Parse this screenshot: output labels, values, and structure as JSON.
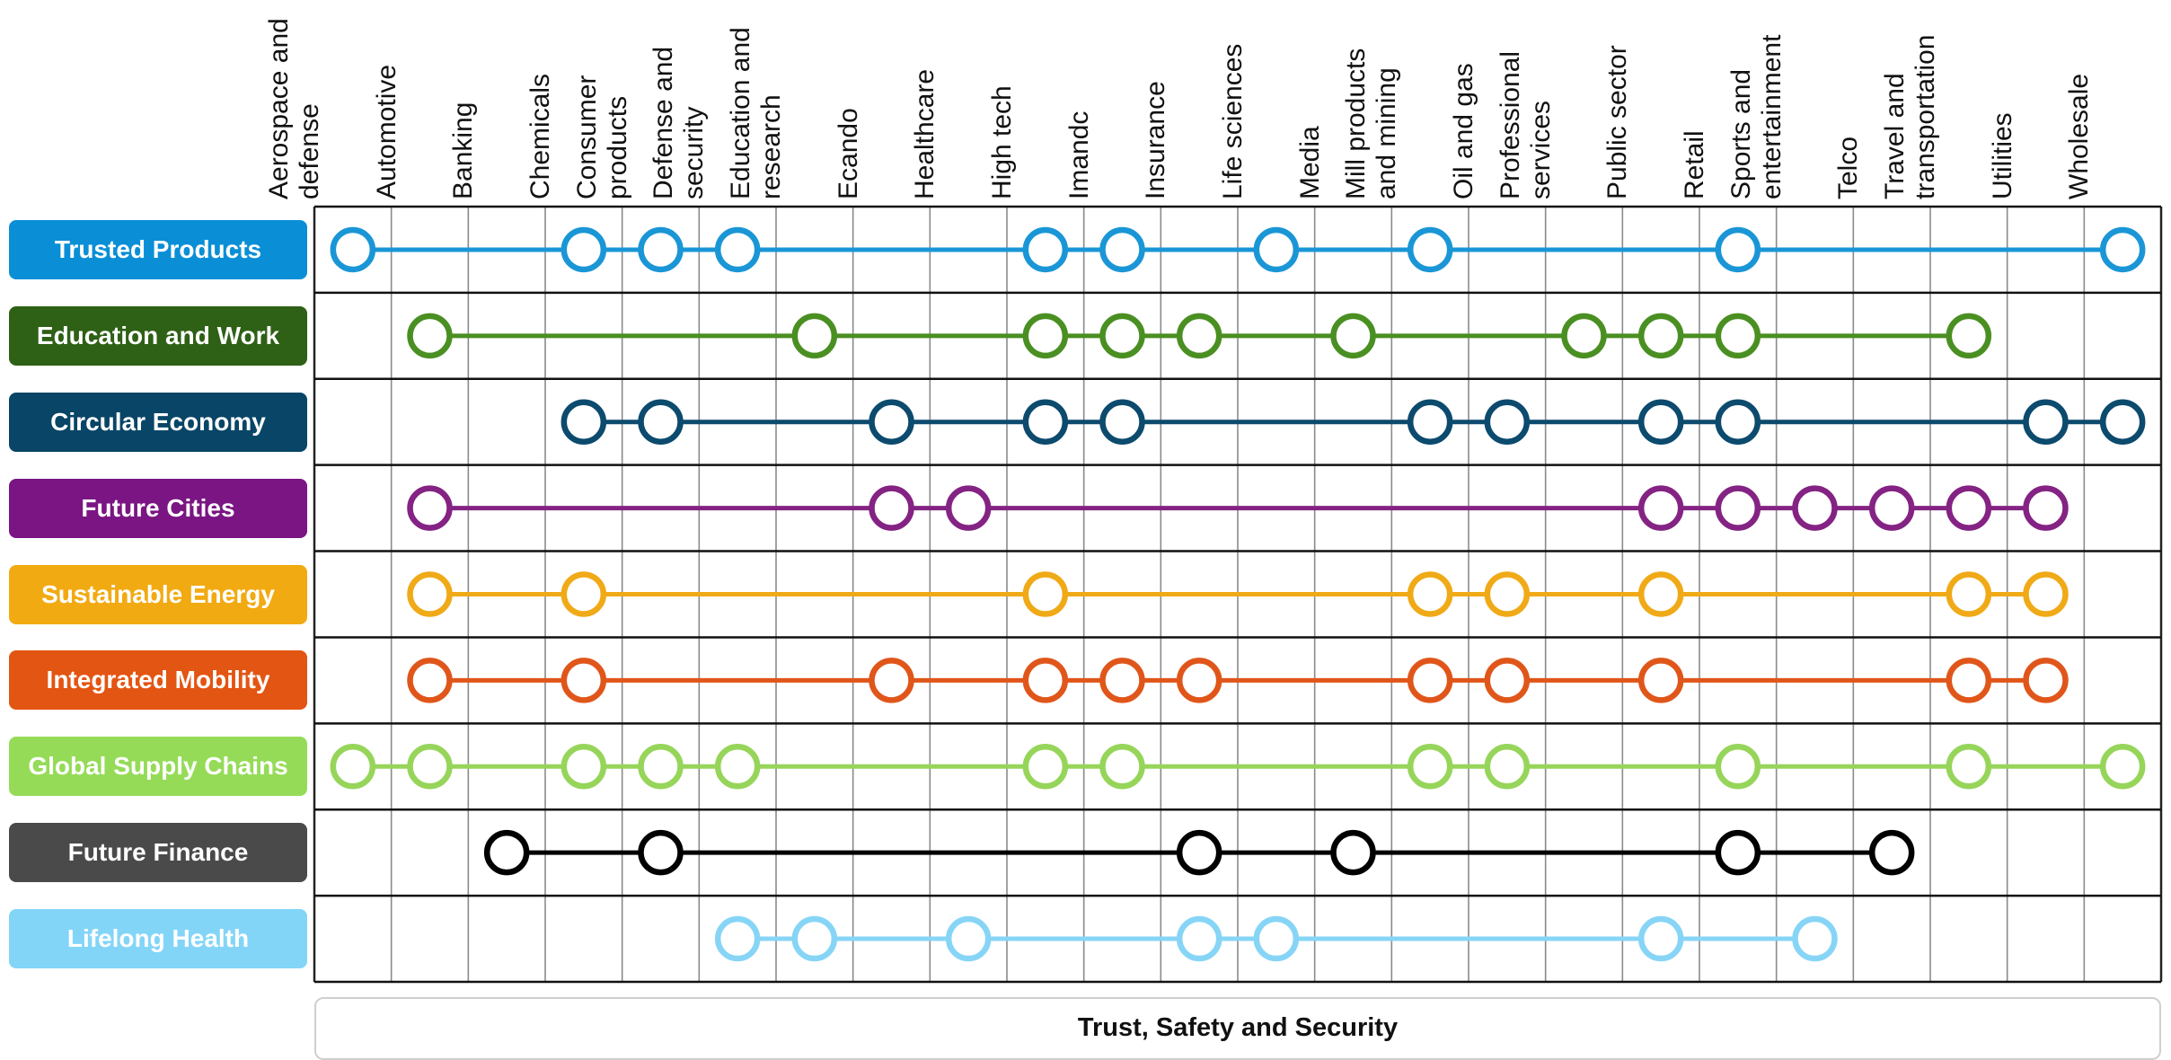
{
  "columns": [
    [
      "Aerospace and",
      "defense"
    ],
    [
      "Automotive"
    ],
    [
      "Banking"
    ],
    [
      "Chemicals"
    ],
    [
      "Consumer",
      "products"
    ],
    [
      "Defense and",
      "security"
    ],
    [
      "Education and",
      "research"
    ],
    [
      "Ecando"
    ],
    [
      "Healthcare"
    ],
    [
      "High tech"
    ],
    [
      "Imandc"
    ],
    [
      "Insurance"
    ],
    [
      "Life sciences"
    ],
    [
      "Media"
    ],
    [
      "Mill products",
      "and mining"
    ],
    [
      "Oil and gas"
    ],
    [
      "Professional",
      "services"
    ],
    [
      "Public sector"
    ],
    [
      "Retail"
    ],
    [
      "Sports and",
      "entertainment"
    ],
    [
      "Telco"
    ],
    [
      "Travel and",
      "transportation"
    ],
    [
      "Utilities"
    ],
    [
      "Wholesale"
    ]
  ],
  "rows": [
    {
      "label": "Trusted Products",
      "color": "#0A8FD6",
      "line": "#1A96D6",
      "nodes": [
        0,
        3,
        4,
        5,
        9,
        10,
        12,
        14,
        18,
        23
      ]
    },
    {
      "label": "Education and Work",
      "color": "#2E6016",
      "line": "#4A8F22",
      "nodes": [
        1,
        6,
        9,
        10,
        11,
        13,
        16,
        17,
        18,
        21
      ]
    },
    {
      "label": "Circular Economy",
      "color": "#084566",
      "line": "#0C4A6E",
      "nodes": [
        3,
        4,
        7,
        9,
        10,
        14,
        15,
        17,
        18,
        22,
        23
      ]
    },
    {
      "label": "Future Cities",
      "color": "#7A1583",
      "line": "#842383",
      "nodes": [
        1,
        7,
        8,
        17,
        18,
        19,
        20,
        21,
        22
      ]
    },
    {
      "label": "Sustainable Energy",
      "color": "#F2AA12",
      "line": "#F0AA17",
      "nodes": [
        1,
        3,
        9,
        14,
        15,
        17,
        21,
        22
      ]
    },
    {
      "label": "Integrated Mobility",
      "color": "#E35512",
      "line": "#E0561A",
      "nodes": [
        1,
        3,
        7,
        9,
        10,
        11,
        14,
        15,
        17,
        21,
        22
      ]
    },
    {
      "label": "Global Supply Chains",
      "color": "#95DB58",
      "line": "#96D55A",
      "nodes": [
        0,
        1,
        3,
        4,
        5,
        9,
        10,
        14,
        15,
        18,
        21,
        23
      ]
    },
    {
      "label": "Future Finance",
      "color": "#4A4A4A",
      "line": "#000000",
      "nodes": [
        2,
        4,
        11,
        13,
        18,
        20
      ]
    },
    {
      "label": "Lifelong Health",
      "color": "#83D5F8",
      "line": "#87D5F6",
      "nodes": [
        5,
        6,
        8,
        11,
        12,
        17,
        19
      ]
    }
  ],
  "footer": {
    "label": "Trust, Safety and Security"
  }
}
